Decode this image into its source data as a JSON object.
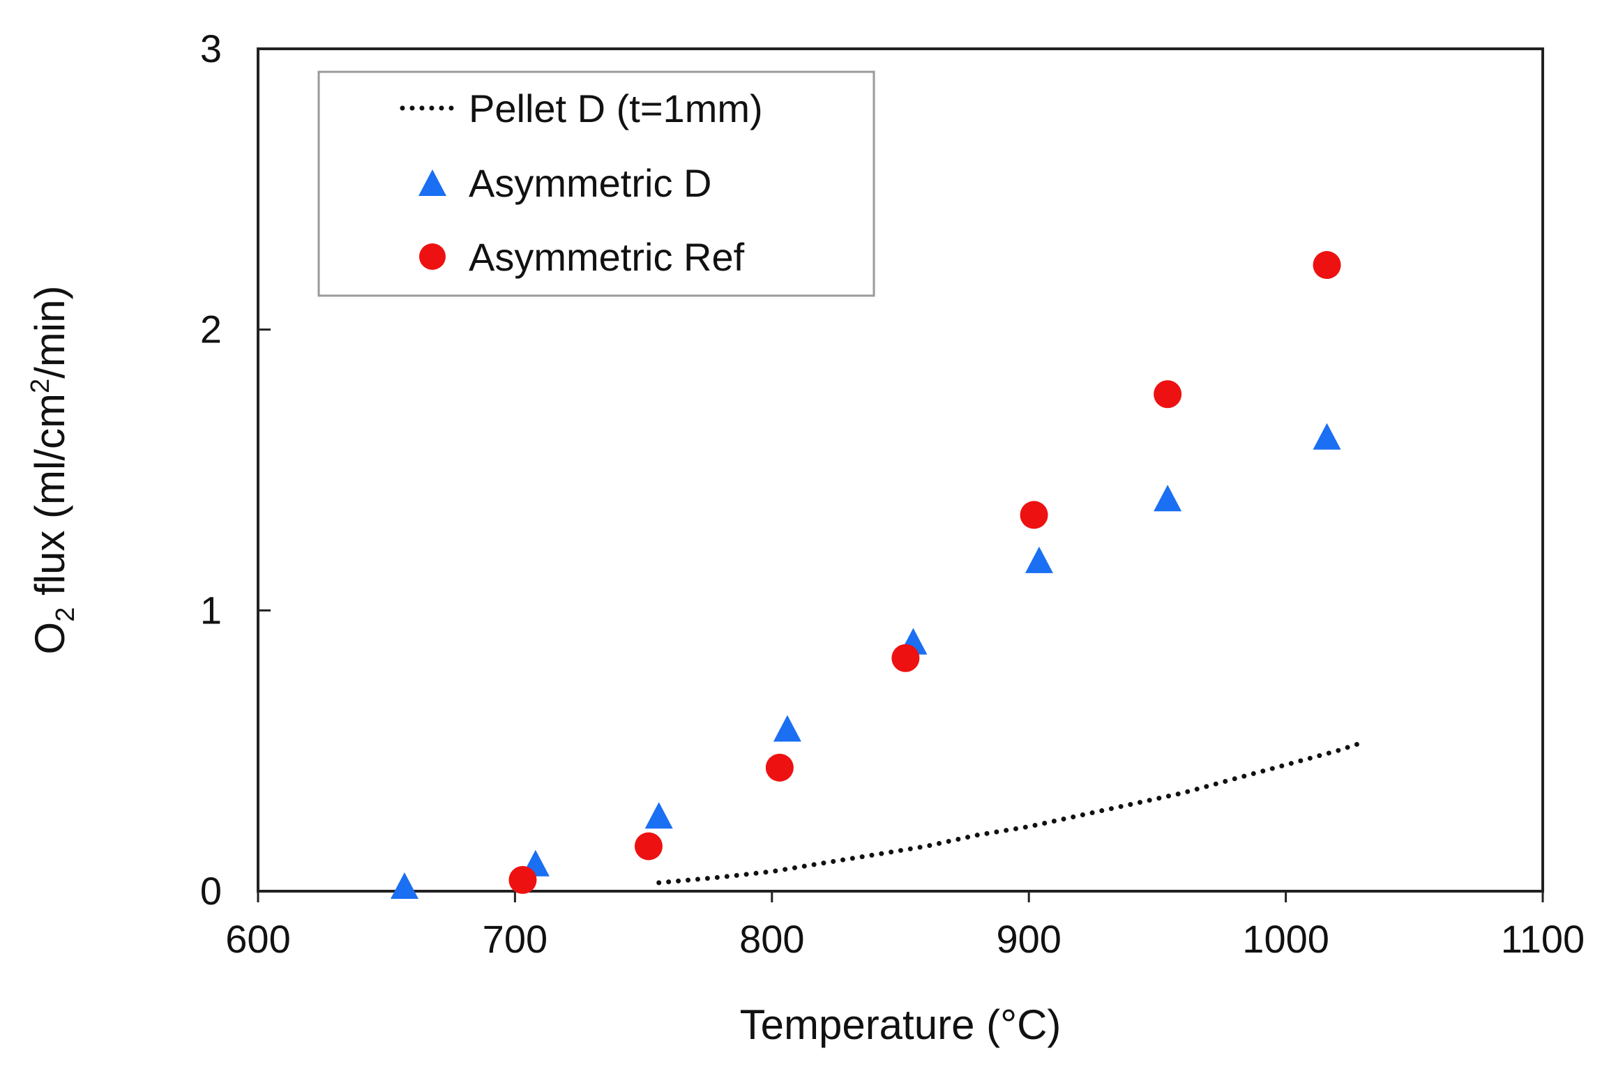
{
  "chart_data": {
    "type": "scatter",
    "title": "",
    "xlabel": "Temperature (°C)",
    "ylabel": {
      "prefix": "O",
      "subscript": "2",
      "middle": " flux (ml/cm",
      "superscript": "2",
      "suffix": "/min)"
    },
    "xlim": [
      600,
      1100
    ],
    "ylim": [
      0,
      3
    ],
    "xticks": [
      "600",
      "700",
      "800",
      "900",
      "1000",
      "1100"
    ],
    "yticks": [
      "0",
      "1",
      "2",
      "3"
    ],
    "grid": false,
    "legend_position": "top-left",
    "series": [
      {
        "name": "Pellet D (t=1mm)",
        "style": "dotted-line",
        "color": "#111111",
        "x": [
          756,
          780,
          800,
          820,
          840,
          860,
          880,
          900,
          920,
          940,
          960,
          980,
          1000,
          1020,
          1030
        ],
        "y": [
          0.03,
          0.05,
          0.07,
          0.1,
          0.13,
          0.16,
          0.2,
          0.23,
          0.27,
          0.31,
          0.35,
          0.4,
          0.45,
          0.5,
          0.53
        ]
      },
      {
        "name": "Asymmetric D",
        "style": "triangle",
        "color": "#1a6ff2",
        "x": [
          657,
          708,
          756,
          806,
          855,
          904,
          954,
          1016
        ],
        "y": [
          0.01,
          0.09,
          0.26,
          0.57,
          0.88,
          1.17,
          1.39,
          1.61
        ]
      },
      {
        "name": "Asymmetric Ref",
        "style": "circle",
        "color": "#ee1111",
        "x": [
          703,
          752,
          803,
          852,
          902,
          954,
          1016
        ],
        "y": [
          0.04,
          0.16,
          0.44,
          0.83,
          1.34,
          1.77,
          2.23
        ]
      }
    ]
  }
}
